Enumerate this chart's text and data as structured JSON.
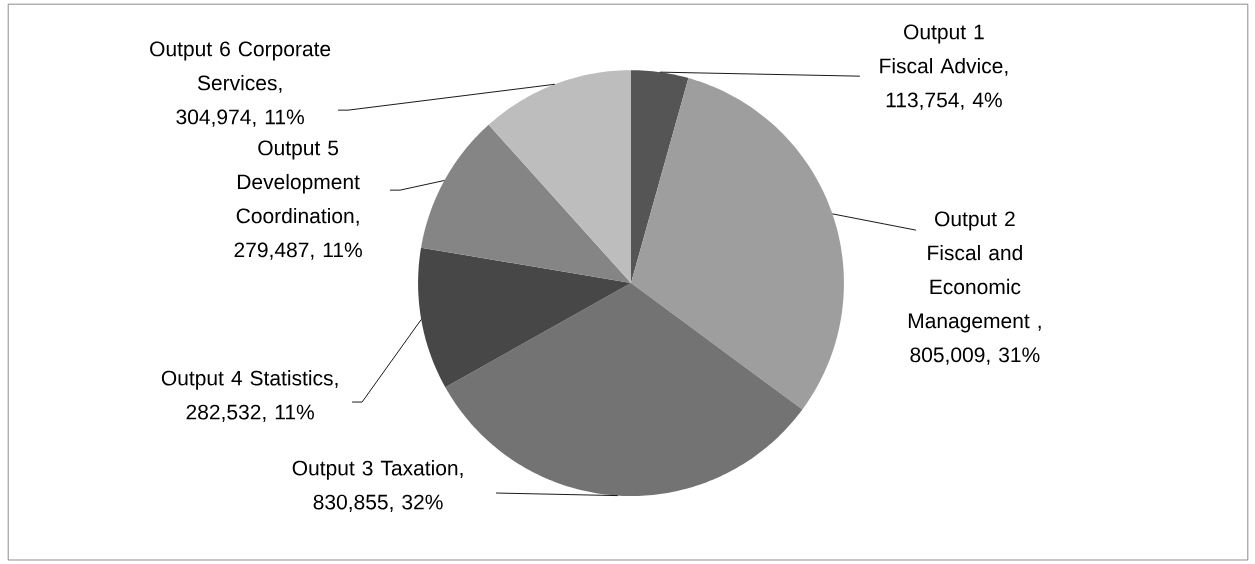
{
  "chart_data": {
    "type": "pie",
    "categories": [
      "Output 1 Fiscal Advice",
      "Output 2 Fiscal and Economic Management",
      "Output 3 Taxation",
      "Output 4 Statistics",
      "Output 5 Development Coordination",
      "Output 6 Corporate Services"
    ],
    "values": [
      113754,
      805009,
      830855,
      282532,
      279487,
      304974
    ],
    "colors": [
      "#555555",
      "#9e9e9e",
      "#737373",
      "#474747",
      "#858585",
      "#bdbdbd"
    ],
    "value_labels": [
      ", 113,754, 4%",
      " , 805,009, 31%",
      ", 830,855, 32%",
      ", 282,532, 11%",
      ", 279,487, 11%",
      ", 304,974, 11%"
    ]
  }
}
